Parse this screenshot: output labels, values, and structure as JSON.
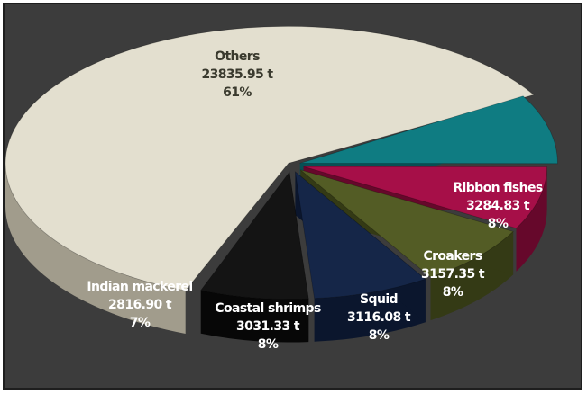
{
  "chart_data": {
    "type": "pie",
    "style": "3d-exploded",
    "slices": [
      {
        "label": "Others",
        "value": 23835.95,
        "value_text": "23835.95 t",
        "percent_text": "61%",
        "color": "#e3dfcf",
        "side": "#a19c8c",
        "text_color": "#3a3a2e"
      },
      {
        "label": "Ribbon fishes",
        "value": 3284.83,
        "value_text": "3284.83 t",
        "percent_text": "8%",
        "color": "#0f7c82",
        "side": "#084f54",
        "text_color": "#ffffff"
      },
      {
        "label": "Croakers",
        "value": 3157.35,
        "value_text": "3157.35 t",
        "percent_text": "8%",
        "color": "#a60f48",
        "side": "#66082b",
        "text_color": "#ffffff"
      },
      {
        "label": "Squid",
        "value": 3116.08,
        "value_text": "3116.08 t",
        "percent_text": "8%",
        "color": "#535c25",
        "side": "#343a15",
        "text_color": "#ffffff"
      },
      {
        "label": "Coastal shrimps",
        "value": 3031.33,
        "value_text": "3031.33 t",
        "percent_text": "8%",
        "color": "#152648",
        "side": "#0b162d",
        "text_color": "#ffffff"
      },
      {
        "label": "Indian mackerel",
        "value": 2816.9,
        "value_text": "2816.90 t",
        "percent_text": "7%",
        "color": "#141414",
        "side": "#070707",
        "text_color": "#ffffff"
      }
    ],
    "background": "#3c3c3c"
  }
}
